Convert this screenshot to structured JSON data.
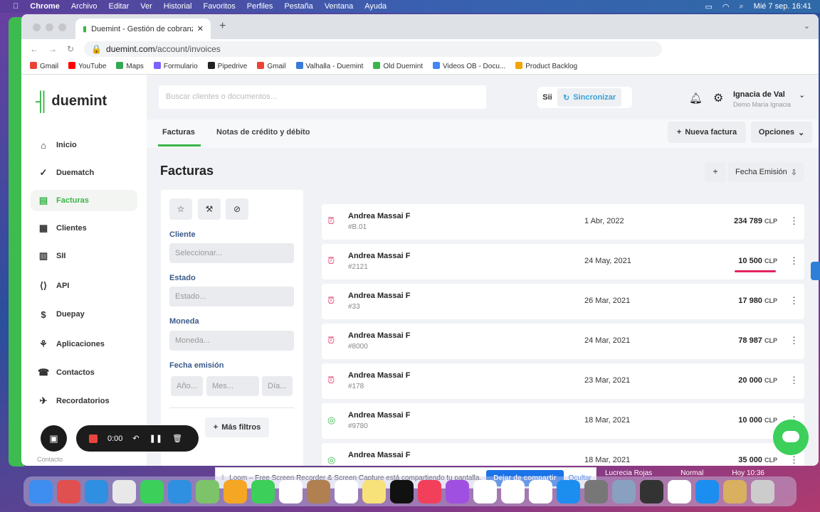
{
  "menubar": {
    "items": [
      "Chrome",
      "Archivo",
      "Editar",
      "Ver",
      "Historial",
      "Favoritos",
      "Perfiles",
      "Pestaña",
      "Ventana",
      "Ayuda"
    ],
    "datetime": "Mié 7 sep.  16:41"
  },
  "browser": {
    "tab_title": "Duemint - Gestión de cobranza",
    "url_host": "duemint.com",
    "url_path": "/account/invoices",
    "bookmarks": [
      {
        "label": "Gmail",
        "color": "#ea4335"
      },
      {
        "label": "YouTube",
        "color": "#ff0000"
      },
      {
        "label": "Maps",
        "color": "#34a853"
      },
      {
        "label": "Formulario",
        "color": "#7b61ff"
      },
      {
        "label": "Pipedrive",
        "color": "#222222"
      },
      {
        "label": "Gmail",
        "color": "#ea4335"
      },
      {
        "label": "Valhalla - Duemint",
        "color": "#3a7bd5"
      },
      {
        "label": "Old Duemint",
        "color": "#3bb54a"
      },
      {
        "label": "Videos OB - Docu...",
        "color": "#4285f4"
      },
      {
        "label": "Product Backlog",
        "color": "#f4a300"
      }
    ]
  },
  "app": {
    "logo": "duemint",
    "search_placeholder": "Buscar clientes o documentos...",
    "sii": "Sii",
    "sync": "Sincronizar",
    "user_name": "Ignacia de Val",
    "user_company": "Demo María Ignacia",
    "nav": [
      "Inicio",
      "Duematch",
      "Facturas",
      "Clientes",
      "SII",
      "API",
      "Duepay",
      "Aplicaciones",
      "Contactos",
      "Recordatorios",
      "Contacto"
    ],
    "tabs": [
      "Facturas",
      "Notas de crédito y débito"
    ],
    "new_invoice": "Nueva factura",
    "options": "Opciones",
    "page_title": "Facturas",
    "sort": "Fecha Emisión",
    "filters": {
      "cliente": "Cliente",
      "cliente_ph": "Seleccionar...",
      "estado": "Estado",
      "estado_ph": "Estado...",
      "moneda": "Moneda",
      "moneda_ph": "Moneda...",
      "fecha": "Fecha emisión",
      "anio": "Año...",
      "mes": "Mes...",
      "dia": "Día...",
      "more": "Más filtros"
    },
    "invoices": [
      {
        "client": "Andrea Massai F",
        "id": "#B.01",
        "date": "1 Abr, 2022",
        "amount": "234 789",
        "currency": "CLP",
        "status": "overdue"
      },
      {
        "client": "Andrea Massai F",
        "id": "#2121",
        "date": "24 May, 2021",
        "amount": "10 500",
        "currency": "CLP",
        "status": "overdue"
      },
      {
        "client": "Andrea Massai F",
        "id": "#33",
        "date": "26 Mar, 2021",
        "amount": "17 980",
        "currency": "CLP",
        "status": "overdue"
      },
      {
        "client": "Andrea Massai F",
        "id": "#8000",
        "date": "24 Mar, 2021",
        "amount": "78 987",
        "currency": "CLP",
        "status": "overdue"
      },
      {
        "client": "Andrea Massai F",
        "id": "#178",
        "date": "23 Mar, 2021",
        "amount": "20 000",
        "currency": "CLP",
        "status": "overdue"
      },
      {
        "client": "Andrea Massai F",
        "id": "#9780",
        "date": "18 Mar, 2021",
        "amount": "10 000",
        "currency": "CLP",
        "status": "paid"
      },
      {
        "client": "Andrea Massai F",
        "id": "",
        "date": "18 Mar, 2021",
        "amount": "35 000",
        "currency": "CLP",
        "status": "paid"
      }
    ]
  },
  "loom": {
    "timer": "0:00",
    "share_text": "Loom – Free Screen Recorder & Screen Capture está compartiendo tu pantalla.",
    "stop": "Dejar de compartir",
    "hide": "Ocultar"
  },
  "behind_text": [
    "Lucrecia Rojas",
    "Normal",
    "Hoy 10:36"
  ],
  "colors": {
    "brand": "#3bb54a",
    "overdue": "#e0245e",
    "link": "#3aa0d8"
  }
}
